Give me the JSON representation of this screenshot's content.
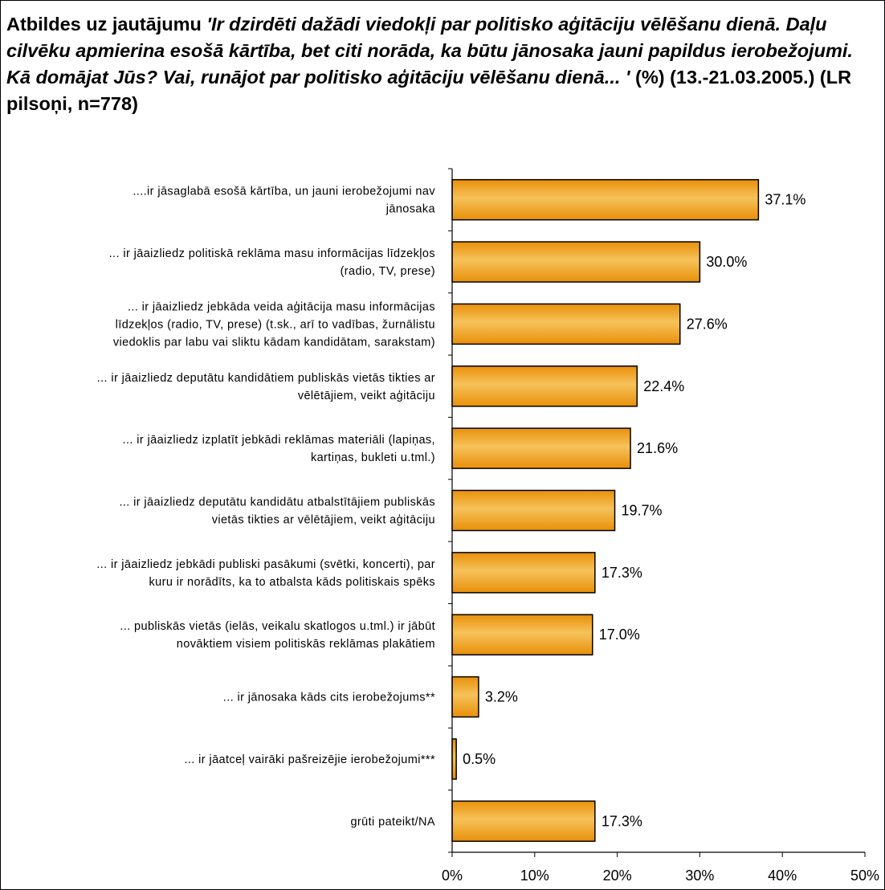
{
  "title": {
    "prefix": "Atbildes uz jautājumu ",
    "question": "'Ir dzirdēti dažādi viedokļi par politisko aģitāciju vēlēšanu dienā. Daļu cilvēku apmierina esošā kārtība, bet citi norāda, ka būtu jānosaka jauni papildus ierobežojumi. Kā domājat Jūs? Vai, runājot par politisko aģitāciju vēlēšanu dienā... '",
    "suffix": " (%) (13.-21.03.2005.) (LR pilsoņi, n=778)"
  },
  "colors": {
    "bar_fill": "#e8900a",
    "bar_highlight": "#f6c25a",
    "bar_stroke": "#000000"
  },
  "chart_data": {
    "type": "bar",
    "orientation": "horizontal",
    "categories": [
      [
        "....ir jāsaglabā esošā kārtība, un jauni ierobežojumi nav",
        "jānosaka"
      ],
      [
        "... ir jāaizliedz politiskā reklāma masu informācijas līdzekļos",
        "(radio, TV, prese)"
      ],
      [
        "... ir jāaizliedz jebkāda veida aģitācija masu informācijas",
        "līdzekļos (radio, TV, prese) (t.sk., arī to vadības, žurnālistu",
        "viedoklis par labu vai sliktu kādam kandidātam, sarakstam)"
      ],
      [
        "... ir jāaizliedz deputātu kandidātiem publiskās vietās tikties ar",
        "vēlētājiem, veikt aģitāciju"
      ],
      [
        "... ir jāaizliedz izplatīt jebkādi reklāmas materiāli (lapiņas,",
        "kartiņas, bukleti u.tml.)"
      ],
      [
        "... ir jāaizliedz deputātu kandidātu atbalstītājiem publiskās",
        "vietās tikties ar vēlētājiem, veikt aģitāciju"
      ],
      [
        "... ir jāaizliedz jebkādi publiski pasākumi (svētki, koncerti), par",
        "kuru ir norādīts, ka to atbalsta kāds politiskais spēks"
      ],
      [
        "... publiskās vietās (ielās, veikalu skatlogos u.tml.) ir jābūt",
        "novāktiem visiem politiskās reklāmas plakātiem"
      ],
      [
        "... ir jānosaka kāds cits ierobežojums**"
      ],
      [
        "... ir jāatceļ vairāki pašreizējie ierobežojumi***"
      ],
      [
        "grūti pateikt/NA"
      ]
    ],
    "values": [
      37.1,
      30.0,
      27.6,
      22.4,
      21.6,
      19.7,
      17.3,
      17.0,
      3.2,
      0.5,
      17.3
    ],
    "value_labels": [
      "37.1%",
      "30.0%",
      "27.6%",
      "22.4%",
      "21.6%",
      "19.7%",
      "17.3%",
      "17.0%",
      "3.2%",
      "0.5%",
      "17.3%"
    ],
    "xlim": [
      0,
      50
    ],
    "xticks": [
      0,
      10,
      20,
      30,
      40,
      50
    ],
    "xtick_labels": [
      "0%",
      "10%",
      "20%",
      "30%",
      "40%",
      "50%"
    ],
    "grid": false,
    "legend": "none"
  }
}
